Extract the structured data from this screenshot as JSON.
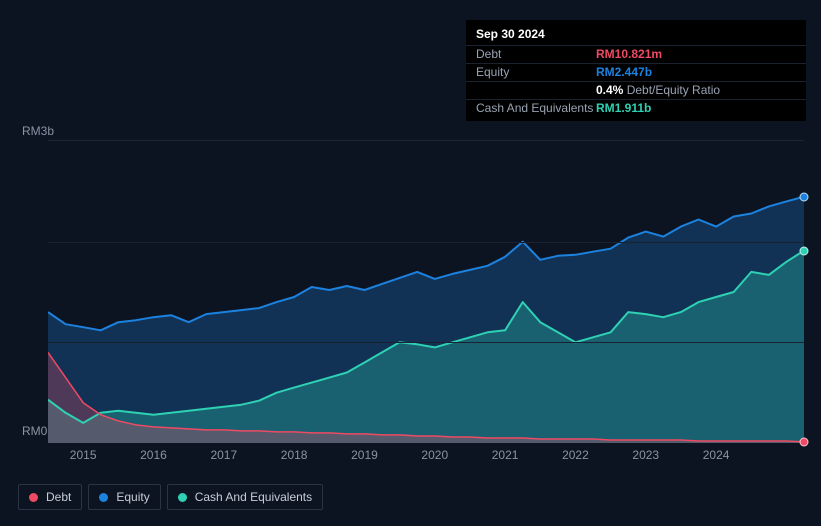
{
  "chart": {
    "type": "area-line",
    "background_color": "#0d1421",
    "grid_color": "#1a2230",
    "plot_top_border": "#1e2633",
    "ylim": [
      0,
      3
    ],
    "ylabel_top": "RM3b",
    "ylabel_bot": "RM0",
    "ylabel_color": "#8b93a3",
    "ylabel_fontsize": 12,
    "xticks": [
      "2015",
      "2016",
      "2017",
      "2018",
      "2019",
      "2020",
      "2021",
      "2022",
      "2023",
      "2024"
    ],
    "xtick_color": "#8b93a3",
    "xtick_fontsize": 12,
    "n_points": 44,
    "series": {
      "debt": {
        "label": "Debt",
        "color": "#ef4a63",
        "fill_opacity": 0.28,
        "line_width": 1.5,
        "values": [
          0.9,
          0.65,
          0.4,
          0.28,
          0.22,
          0.18,
          0.16,
          0.15,
          0.14,
          0.13,
          0.13,
          0.12,
          0.12,
          0.11,
          0.11,
          0.1,
          0.1,
          0.09,
          0.09,
          0.08,
          0.08,
          0.07,
          0.07,
          0.06,
          0.06,
          0.05,
          0.05,
          0.05,
          0.04,
          0.04,
          0.04,
          0.04,
          0.03,
          0.03,
          0.03,
          0.03,
          0.03,
          0.02,
          0.02,
          0.02,
          0.02,
          0.02,
          0.02,
          0.011
        ]
      },
      "equity": {
        "label": "Equity",
        "color": "#1c82e0",
        "fill_opacity": 0.28,
        "line_width": 2,
        "values": [
          1.3,
          1.18,
          1.15,
          1.12,
          1.2,
          1.22,
          1.25,
          1.27,
          1.2,
          1.28,
          1.3,
          1.32,
          1.34,
          1.4,
          1.45,
          1.55,
          1.52,
          1.56,
          1.52,
          1.58,
          1.64,
          1.7,
          1.63,
          1.68,
          1.72,
          1.76,
          1.85,
          2.0,
          1.82,
          1.86,
          1.87,
          1.9,
          1.93,
          2.04,
          2.1,
          2.05,
          2.15,
          2.22,
          2.15,
          2.25,
          2.28,
          2.35,
          2.4,
          2.447
        ]
      },
      "cash": {
        "label": "Cash And Equivalents",
        "color": "#2ed1b3",
        "fill_opacity": 0.3,
        "line_width": 2,
        "values": [
          0.43,
          0.3,
          0.2,
          0.3,
          0.32,
          0.3,
          0.28,
          0.3,
          0.32,
          0.34,
          0.36,
          0.38,
          0.42,
          0.5,
          0.55,
          0.6,
          0.65,
          0.7,
          0.8,
          0.9,
          1.0,
          0.98,
          0.95,
          1.0,
          1.05,
          1.1,
          1.12,
          1.4,
          1.2,
          1.1,
          1.0,
          1.05,
          1.1,
          1.3,
          1.28,
          1.25,
          1.3,
          1.4,
          1.45,
          1.5,
          1.7,
          1.67,
          1.8,
          1.911
        ]
      }
    },
    "end_markers": true
  },
  "tooltip": {
    "date": "Sep 30 2024",
    "rows": [
      {
        "label": "Debt",
        "value": "RM10.821m",
        "color": "#ef4a63"
      },
      {
        "label": "Equity",
        "value": "RM2.447b",
        "color": "#1c82e0"
      },
      {
        "label": "",
        "value_prefix": "0.4%",
        "value_suffix": " Debt/Equity Ratio",
        "prefix_color": "#ffffff",
        "suffix_color": "#9aa3b2"
      },
      {
        "label": "Cash And Equivalents",
        "value": "RM1.911b",
        "color": "#2ed1b3"
      }
    ]
  },
  "legend": {
    "items": [
      {
        "label": "Debt",
        "color": "#ef4a63"
      },
      {
        "label": "Equity",
        "color": "#1c82e0"
      },
      {
        "label": "Cash And Equivalents",
        "color": "#2ed1b3"
      }
    ],
    "border_color": "#2a3444",
    "text_color": "#c7cdd6",
    "fontsize": 12
  }
}
